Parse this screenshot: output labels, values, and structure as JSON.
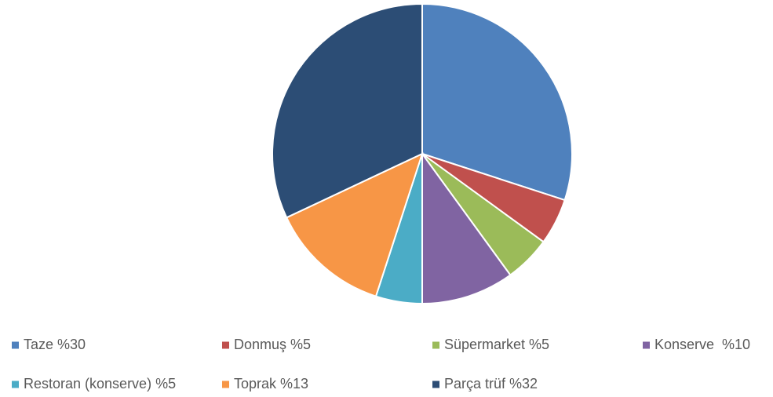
{
  "chart_data": {
    "type": "pie",
    "categories": [
      "Taze %30",
      "Donmuş %5",
      "Süpermarket %5",
      "Konserve  %10",
      "Restoran (konserve) %5",
      "Toprak %13",
      "Parça trüf %32"
    ],
    "values": [
      30,
      5,
      5,
      10,
      5,
      13,
      32
    ],
    "colors": [
      "#4f81bd",
      "#c0504d",
      "#9bbb59",
      "#8064a2",
      "#4bacc6",
      "#f79646",
      "#2c4d75"
    ],
    "legend": "bottom"
  }
}
